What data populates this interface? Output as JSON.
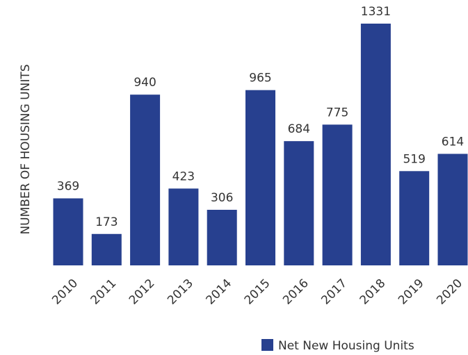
{
  "chart_data": {
    "type": "bar",
    "y_label": "NUMBER OF HOUSING UNITS",
    "categories": [
      "2010",
      "2011",
      "2012",
      "2013",
      "2014",
      "2015",
      "2016",
      "2017",
      "2018",
      "2019",
      "2020"
    ],
    "series": [
      {
        "name": "Net New Housing Units",
        "color": "#27408f",
        "values": [
          369,
          173,
          940,
          423,
          306,
          965,
          684,
          775,
          1331,
          519,
          614
        ]
      }
    ]
  }
}
